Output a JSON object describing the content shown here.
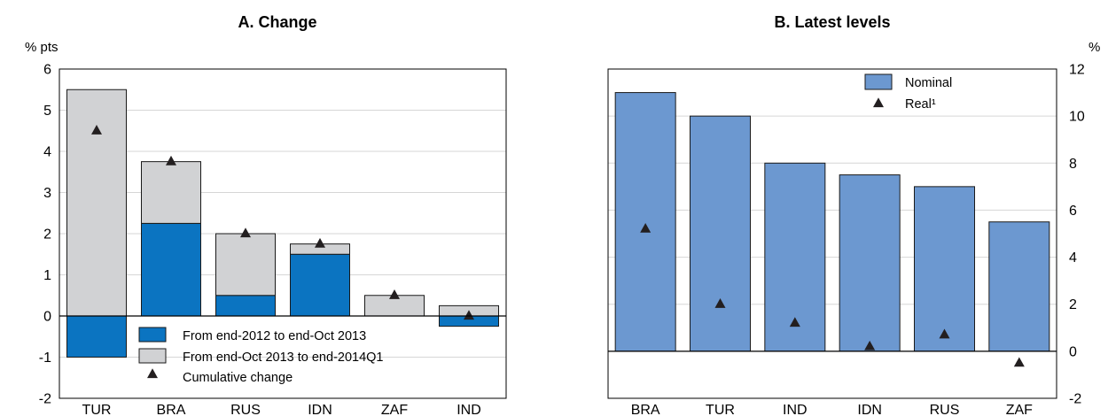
{
  "chart_data": [
    {
      "panel": "A",
      "type": "bar",
      "stacked": true,
      "title": "A. Change",
      "unit": "% pts",
      "ylim": [
        -2,
        6
      ],
      "yticks": [
        -2,
        -1,
        0,
        1,
        2,
        3,
        4,
        5,
        6
      ],
      "categories": [
        "TUR",
        "BRA",
        "RUS",
        "IDN",
        "ZAF",
        "IND"
      ],
      "series": [
        {
          "name": "From end-2012 to end-Oct 2013",
          "kind": "bar",
          "color": "#0b74c1",
          "values": [
            -1.0,
            2.25,
            0.5,
            1.5,
            0.0,
            -0.25
          ]
        },
        {
          "name": "From end-Oct 2013 to end-2014Q1",
          "kind": "bar",
          "color": "#d1d2d4",
          "values": [
            5.5,
            1.5,
            1.5,
            0.25,
            0.5,
            0.25
          ]
        },
        {
          "name": "Cumulative change",
          "kind": "marker",
          "color": "#231f20",
          "values": [
            4.5,
            3.75,
            2.0,
            1.75,
            0.5,
            0.0
          ]
        }
      ],
      "legend_position": "bottom-center",
      "grid": true
    },
    {
      "panel": "B",
      "type": "bar",
      "title": "B. Latest levels",
      "unit": "%",
      "ylim": [
        -2,
        12
      ],
      "yticks": [
        -2,
        0,
        2,
        4,
        6,
        8,
        10,
        12
      ],
      "categories": [
        "BRA",
        "TUR",
        "IND",
        "IDN",
        "RUS",
        "ZAF"
      ],
      "series": [
        {
          "name": "Nominal",
          "kind": "bar",
          "color": "#6c98d0",
          "values": [
            11.0,
            10.0,
            8.0,
            7.5,
            7.0,
            5.5
          ]
        },
        {
          "name": "Real¹",
          "kind": "marker",
          "color": "#231f20",
          "values": [
            5.2,
            2.0,
            1.2,
            0.2,
            0.7,
            -0.5
          ]
        }
      ],
      "legend_position": "top-right",
      "grid": true
    }
  ]
}
